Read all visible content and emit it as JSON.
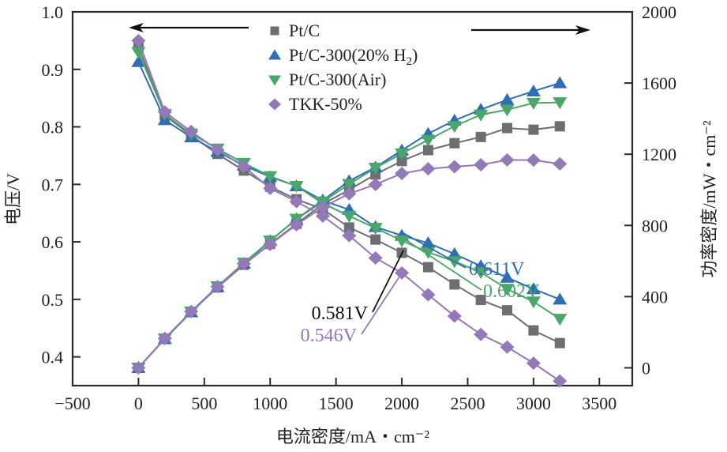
{
  "chart_data": {
    "type": "line",
    "title": "",
    "xlabel": "电流密度/mA・cm⁻²",
    "ylabel": "电压/V",
    "y2label": "功率密度/mW・cm⁻²",
    "xlim": [
      -500,
      3750
    ],
    "ylim": [
      0.35,
      1.0
    ],
    "y2lim": [
      -100,
      2000
    ],
    "xticks": [
      -500,
      0,
      500,
      1000,
      1500,
      2000,
      2500,
      3000,
      3500
    ],
    "xtick_labels": [
      "−500",
      "0",
      "500",
      "1000",
      "1500",
      "2000",
      "2500",
      "3000",
      "3500"
    ],
    "yticks": [
      0.4,
      0.5,
      0.6,
      0.7,
      0.8,
      0.9,
      1.0
    ],
    "ytick_labels": [
      "0.4",
      "0.5",
      "0.6",
      "0.7",
      "0.8",
      "0.9",
      "1.0"
    ],
    "y2ticks": [
      0,
      400,
      800,
      1200,
      1600,
      2000
    ],
    "y2tick_labels": [
      "0",
      "400",
      "800",
      "1200",
      "1600",
      "2000"
    ],
    "grid": false,
    "legend_position": "top-center",
    "x": [
      0,
      200,
      400,
      600,
      800,
      1000,
      1200,
      1400,
      1600,
      1800,
      2000,
      2200,
      2400,
      2600,
      2800,
      3000,
      3200
    ],
    "series": [
      {
        "name": "Pt/C",
        "marker": "square",
        "color": "#6d6e71",
        "voltage": [
          0.94,
          0.82,
          0.785,
          0.753,
          0.724,
          0.696,
          0.674,
          0.657,
          0.625,
          0.604,
          0.581,
          0.556,
          0.526,
          0.499,
          0.481,
          0.446,
          0.424
        ],
        "power": [
          0,
          164,
          314,
          452,
          579,
          696,
          809,
          920,
          1000,
          1087,
          1162,
          1223,
          1262,
          1297,
          1347,
          1338,
          1357
        ]
      },
      {
        "name": "Pt/C-300(20% H₂)",
        "marker": "triangle-up",
        "color": "#2f6db5",
        "voltage": [
          0.913,
          0.812,
          0.782,
          0.757,
          0.733,
          0.713,
          0.697,
          0.672,
          0.656,
          0.626,
          0.611,
          0.598,
          0.579,
          0.558,
          0.538,
          0.518,
          0.5
        ],
        "power": [
          0,
          162,
          313,
          454,
          586,
          713,
          836,
          941,
          1050,
          1127,
          1222,
          1316,
          1390,
          1451,
          1506,
          1554,
          1600
        ]
      },
      {
        "name": "Pt/C-300(Air)",
        "marker": "triangle-down",
        "color": "#4aa66a",
        "voltage": [
          0.93,
          0.822,
          0.788,
          0.762,
          0.737,
          0.714,
          0.697,
          0.667,
          0.645,
          0.624,
          0.602,
          0.582,
          0.566,
          0.547,
          0.518,
          0.496,
          0.466
        ],
        "power": [
          0,
          164,
          315,
          457,
          590,
          714,
          836,
          934,
          1032,
          1123,
          1204,
          1280,
          1358,
          1422,
          1450,
          1488,
          1491
        ]
      },
      {
        "name": "TKK-50%",
        "marker": "diamond",
        "color": "#9479b8",
        "voltage": [
          0.95,
          0.826,
          0.792,
          0.76,
          0.731,
          0.693,
          0.67,
          0.645,
          0.611,
          0.572,
          0.546,
          0.508,
          0.471,
          0.439,
          0.417,
          0.389,
          0.358
        ],
        "power": [
          0,
          165,
          317,
          456,
          585,
          693,
          804,
          903,
          978,
          1030,
          1092,
          1118,
          1130,
          1141,
          1168,
          1167,
          1146
        ]
      }
    ],
    "annotations": [
      {
        "text": "0.611V",
        "series": "Pt/C-300(20% H₂)",
        "x": 2000,
        "y": 0.611,
        "color": "#2f6db5"
      },
      {
        "text": "0.602V",
        "series": "Pt/C-300(Air)",
        "x": 2000,
        "y": 0.602,
        "color": "#4aa66a"
      },
      {
        "text": "0.581V",
        "series": "Pt/C",
        "x": 2000,
        "y": 0.581,
        "color": "#111111"
      },
      {
        "text": "0.546V",
        "series": "TKK-50%",
        "x": 2000,
        "y": 0.546,
        "color": "#9479b8"
      }
    ],
    "arrows": [
      {
        "direction": "left",
        "meaning": "voltage curves refer to left axis"
      },
      {
        "direction": "right",
        "meaning": "power curves refer to right axis"
      }
    ]
  }
}
